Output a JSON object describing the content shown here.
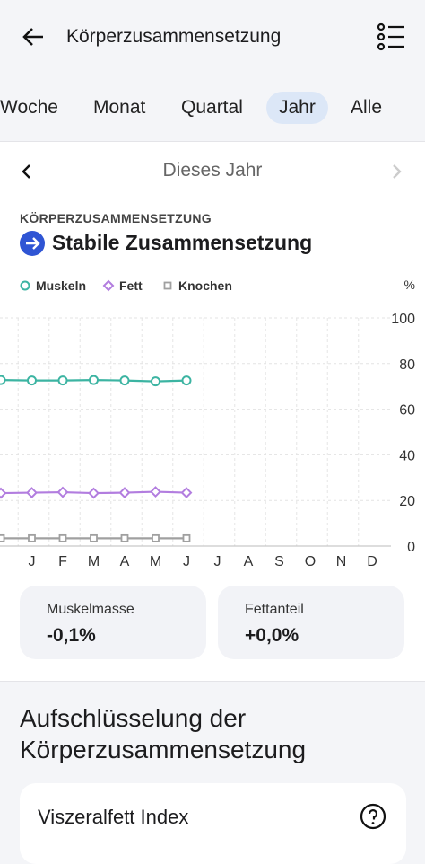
{
  "header": {
    "title": "Körperzusammensetzung"
  },
  "tabs": {
    "items": [
      "Woche",
      "Monat",
      "Quartal",
      "Jahr",
      "Alle"
    ],
    "active_index": 3
  },
  "period": {
    "label": "Dieses Jahr"
  },
  "summary": {
    "section": "KÖRPERZUSAMMENSETZUNG",
    "status": "Stabile Zusammensetzung"
  },
  "chart_data": {
    "type": "line",
    "unit": "%",
    "categories": [
      null,
      "J",
      "F",
      "M",
      "A",
      "M",
      "J",
      "J",
      "A",
      "S",
      "O",
      "N",
      "D"
    ],
    "series": [
      {
        "name": "Muskeln",
        "color": "#3cb4a2",
        "marker": "circle",
        "values": [
          72.8,
          72.6,
          72.6,
          72.8,
          72.6,
          72.2,
          72.6,
          null,
          null,
          null,
          null,
          null,
          null
        ]
      },
      {
        "name": "Fett",
        "color": "#b27ddf",
        "marker": "diamond",
        "values": [
          23.2,
          23.4,
          23.6,
          23.2,
          23.4,
          23.8,
          23.4,
          null,
          null,
          null,
          null,
          null,
          null
        ]
      },
      {
        "name": "Knochen",
        "color": "#a0a0a0",
        "marker": "square",
        "values": [
          3.4,
          3.4,
          3.4,
          3.4,
          3.4,
          3.4,
          3.4,
          null,
          null,
          null,
          null,
          null,
          null
        ]
      }
    ],
    "ylim": [
      0,
      100
    ],
    "yticks": [
      0,
      20,
      40,
      60,
      80,
      100
    ],
    "grid": true,
    "legend": "top-left"
  },
  "stats": [
    {
      "label": "Muskelmasse",
      "value": "-0,1%"
    },
    {
      "label": "Fettanteil",
      "value": "+0,0%"
    }
  ],
  "breakdown": {
    "title": "Aufschlüsselung der Körperzusammensetzung",
    "card": "Viszeralfett Index"
  }
}
